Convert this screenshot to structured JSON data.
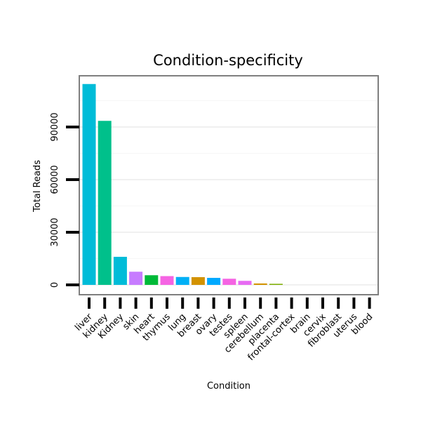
{
  "chart_data": {
    "type": "bar",
    "title": "Condition-specificity",
    "xlabel": "Condition",
    "ylabel": "Total Reads",
    "categories": [
      "liver",
      "kidney",
      "Kidney",
      "skin",
      "heart",
      "thymus",
      "lung",
      "breast",
      "ovary",
      "testes",
      "spleen",
      "cerebellum",
      "placenta",
      "frontal-cortex",
      "brain",
      "cervix",
      "fibroblast",
      "uterus",
      "blood"
    ],
    "values": [
      114500,
      93500,
      16000,
      7500,
      5500,
      5000,
      4500,
      4400,
      4000,
      3500,
      2300,
      800,
      600,
      0,
      0,
      0,
      0,
      0,
      0
    ],
    "colors": [
      "#00BCD8",
      "#00C08B",
      "#00BCD8",
      "#C77CFF",
      "#00BA38",
      "#F564E3",
      "#00B0F6",
      "#D39200",
      "#00A9FF",
      "#F564E3",
      "#E76BF3",
      "#D39200",
      "#7CAE00",
      "#7CAE00",
      "#7CAE00",
      "#7CAE00",
      "#7CAE00",
      "#7CAE00",
      "#7CAE00"
    ],
    "yticks": [
      0,
      30000,
      60000,
      90000
    ],
    "ylim": [
      -6000,
      120000
    ],
    "grid": true,
    "legend": "none"
  }
}
